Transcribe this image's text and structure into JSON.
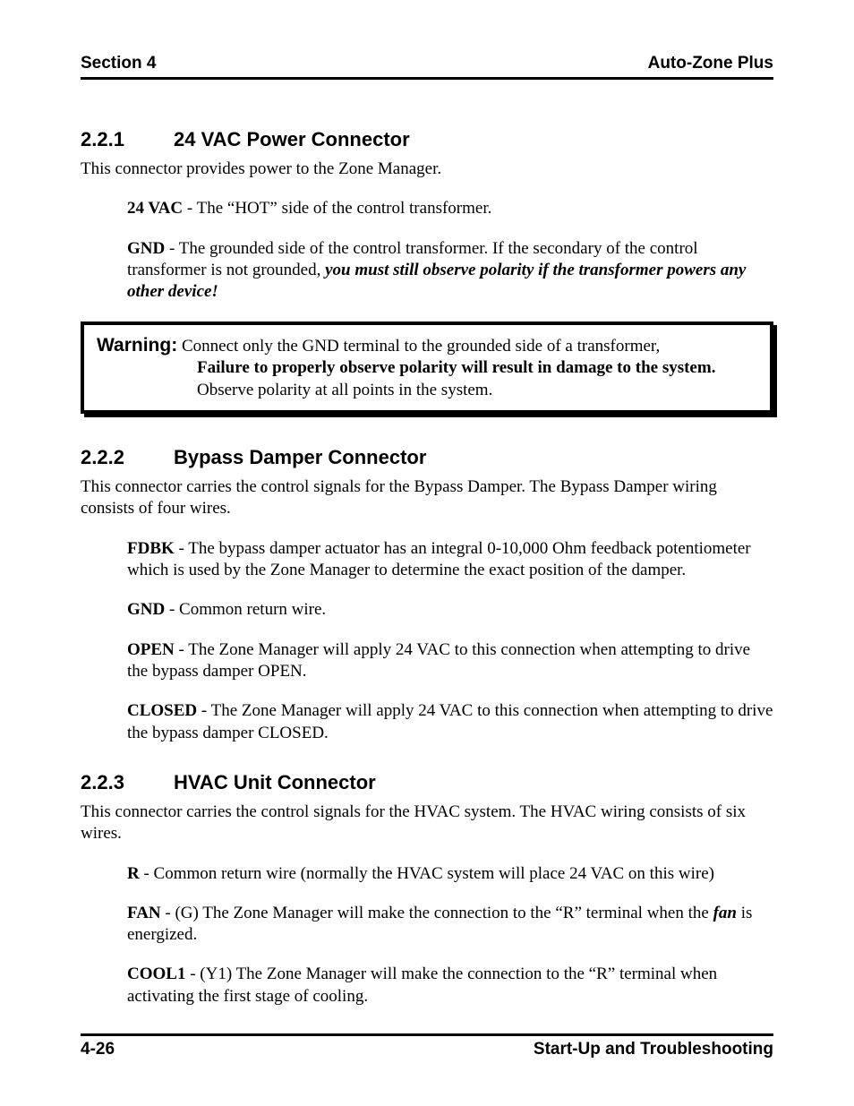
{
  "header": {
    "left": "Section 4",
    "right": "Auto-Zone Plus"
  },
  "footer": {
    "left": "4-26",
    "right": "Start-Up and Troubleshooting"
  },
  "s221": {
    "num": "2.2.1",
    "title": "24 VAC Power Connector",
    "intro": "This connector provides power to the Zone Manager.",
    "t1_term": "24 VAC",
    "t1_text": " - The “HOT” side of the control transformer.",
    "t2_term": "GND",
    "t2_text_a": " - The grounded side of the control transformer. If the secondary of the control transformer is not grounded, ",
    "t2_text_b": "you must still observe polarity if the transformer powers any other device!"
  },
  "warning": {
    "label": "Warning:",
    "line1": " Connect only the GND terminal to the grounded side of a transformer, ",
    "bold": "Failure to properly observe polarity will result in damage to the system.",
    "line2": " Observe polarity at all points in the system."
  },
  "s222": {
    "num": "2.2.2",
    "title": "Bypass Damper Connector",
    "intro": "This connector carries the control signals for the Bypass Damper. The Bypass Damper wiring consists of four wires.",
    "t1_term": "FDBK",
    "t1_text": " - The bypass damper actuator has an integral 0-10,000 Ohm feedback potentiometer which is used by the Zone Manager to determine the exact position of the damper.",
    "t2_term": "GND",
    "t2_text": " - Common return wire.",
    "t3_term": "OPEN",
    "t3_text": " - The Zone Manager will apply 24 VAC to this connection when attempting to drive the bypass damper OPEN.",
    "t4_term": "CLOSED",
    "t4_text": " - The Zone Manager will apply 24 VAC to this connection when attempting to drive the bypass damper CLOSED."
  },
  "s223": {
    "num": "2.2.3",
    "title": "HVAC Unit Connector",
    "intro": "This connector carries the control signals for the HVAC system. The HVAC wiring consists of six wires.",
    "t1_term": "R",
    "t1_text": " - Common return wire (normally the HVAC system will place 24 VAC on this wire)",
    "t2_term": "FAN",
    "t2_text_a": " - (G) The Zone Manager will make the connection to the “R” terminal when the ",
    "t2_text_b": "fan",
    "t2_text_c": " is energized.",
    "t3_term": "COOL1",
    "t3_text": " - (Y1) The Zone Manager will make the connection to the “R” terminal when activating the first stage of cooling."
  }
}
